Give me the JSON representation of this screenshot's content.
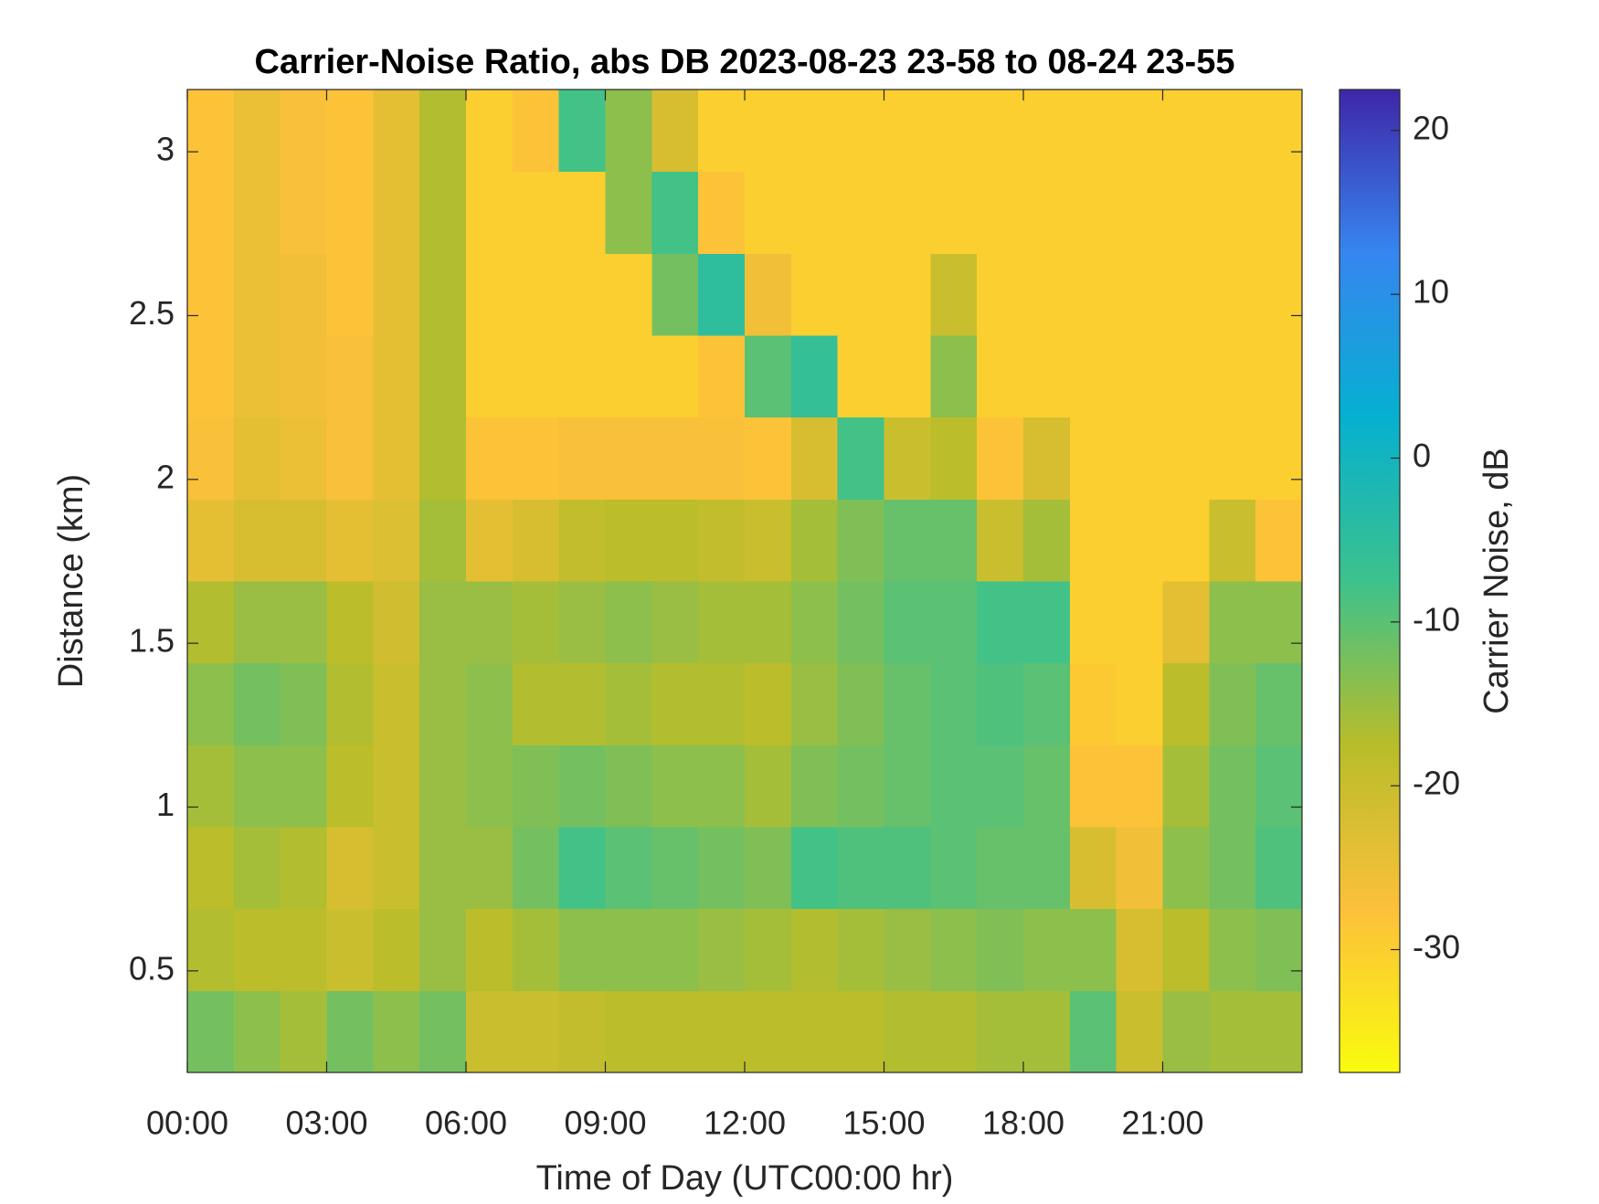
{
  "chart_data": {
    "type": "heatmap",
    "title": "Carrier-Noise Ratio, abs DB 2023-08-23 23-58 to 08-24 23-55",
    "x_label": "Time of Day (UTC00:00 hr)",
    "y_label": "Distance (km)",
    "colorbar_label": "Carrier Noise, dB",
    "x": [
      0,
      1,
      2,
      3,
      4,
      5,
      6,
      7,
      8,
      9,
      10,
      11,
      12,
      13,
      14,
      15,
      16,
      17,
      18,
      19,
      20,
      21,
      22,
      23,
      24
    ],
    "y": [
      0.19,
      0.44,
      0.69,
      0.94,
      1.19,
      1.44,
      1.69,
      1.94,
      2.19,
      2.44,
      2.69,
      2.94,
      3.19
    ],
    "z": [
      [
        -12,
        -14,
        -16,
        -12,
        -14,
        -12,
        -20,
        -20,
        -19,
        -18,
        -18,
        -18,
        -18,
        -18,
        -18,
        -17,
        -17,
        -16,
        -16,
        -10,
        -20,
        -15,
        -16,
        -16
      ],
      [
        -17,
        -18,
        -18,
        -20,
        -18,
        -15,
        -18,
        -16,
        -14,
        -14,
        -14,
        -15,
        -16,
        -17,
        -16,
        -15,
        -14,
        -13,
        -14,
        -14,
        -22,
        -18,
        -14,
        -13
      ],
      [
        -18,
        -16,
        -17,
        -22,
        -20,
        -15,
        -15,
        -12,
        -8,
        -10,
        -11,
        -12,
        -13,
        -8,
        -9,
        -9,
        -10,
        -11,
        -11,
        -22,
        -26,
        -14,
        -12,
        -9
      ],
      [
        -16,
        -14,
        -14,
        -18,
        -20,
        -15,
        -14,
        -13,
        -12,
        -13,
        -14,
        -14,
        -16,
        -13,
        -12,
        -11,
        -10,
        -10,
        -11,
        -28,
        -28,
        -16,
        -12,
        -10
      ],
      [
        -14,
        -12,
        -13,
        -17,
        -20,
        -15,
        -14,
        -17,
        -17,
        -16,
        -17,
        -17,
        -18,
        -15,
        -13,
        -11,
        -10,
        -9,
        -10,
        -29,
        -30,
        -18,
        -13,
        -11
      ],
      [
        -17,
        -15,
        -15,
        -18,
        -21,
        -15,
        -15,
        -16,
        -15,
        -14,
        -15,
        -16,
        -16,
        -14,
        -12,
        -10,
        -10,
        -8,
        -8,
        -30,
        -30,
        -24,
        -14,
        -14
      ],
      [
        -24,
        -22,
        -22,
        -24,
        -23,
        -16,
        -24,
        -22,
        -19,
        -18,
        -18,
        -19,
        -20,
        -16,
        -13,
        -11,
        -11,
        -20,
        -16,
        -30,
        -30,
        -30,
        -20,
        -28
      ],
      [
        -27,
        -24,
        -25,
        -27,
        -24,
        -17,
        -28,
        -28,
        -27,
        -27,
        -27,
        -27,
        -28,
        -22,
        -8,
        -20,
        -18,
        -28,
        -22,
        -30,
        -30,
        -30,
        -30,
        -30
      ],
      [
        -28,
        -25,
        -26,
        -27,
        -24,
        -17,
        -30,
        -30,
        -30,
        -30,
        -30,
        -28,
        -10,
        -6,
        -30,
        -30,
        -14,
        -30,
        -30,
        -30,
        -30,
        -30,
        -30,
        -30
      ],
      [
        -28,
        -25,
        -26,
        -28,
        -24,
        -17,
        -30,
        -30,
        -30,
        -30,
        -12,
        -5,
        -26,
        -30,
        -30,
        -30,
        -20,
        -30,
        -30,
        -30,
        -30,
        -30,
        -30,
        -30
      ],
      [
        -28,
        -25,
        -27,
        -28,
        -24,
        -17,
        -30,
        -30,
        -30,
        -14,
        -8,
        -28,
        -30,
        -30,
        -30,
        -30,
        -30,
        -30,
        -30,
        -30,
        -30,
        -30,
        -30,
        -30
      ],
      [
        -28,
        -25,
        -27,
        -28,
        -24,
        -17,
        -30,
        -28,
        -8,
        -14,
        -22,
        -30,
        -30,
        -30,
        -30,
        -30,
        -30,
        -30,
        -30,
        -30,
        -30,
        -30,
        -30,
        -30
      ]
    ],
    "xlim": [
      0,
      24
    ],
    "ylim": [
      0.19,
      3.19
    ],
    "clim": [
      -37.5,
      22.5
    ],
    "xticks": [
      {
        "value": 0,
        "label": "00:00"
      },
      {
        "value": 3,
        "label": "03:00"
      },
      {
        "value": 6,
        "label": "06:00"
      },
      {
        "value": 9,
        "label": "09:00"
      },
      {
        "value": 12,
        "label": "12:00"
      },
      {
        "value": 15,
        "label": "15:00"
      },
      {
        "value": 18,
        "label": "18:00"
      },
      {
        "value": 21,
        "label": "21:00"
      }
    ],
    "yticks": [
      0.5,
      1,
      1.5,
      2,
      2.5,
      3
    ],
    "cticks": [
      -30,
      -20,
      -10,
      0,
      10,
      20
    ],
    "colormap": [
      "#f9fb0e",
      "#fcc03a",
      "#b8bd2a",
      "#3cc28c",
      "#06b0d0",
      "#3686f0",
      "#3e26a8"
    ]
  }
}
